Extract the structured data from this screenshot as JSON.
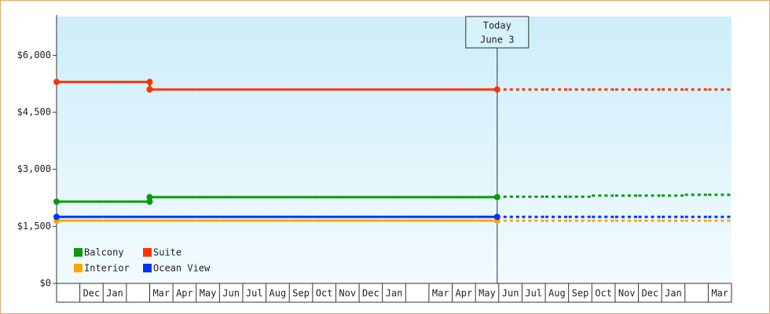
{
  "chart_data": {
    "type": "line",
    "categories": [
      null,
      "Dec",
      "Jan",
      null,
      "Mar",
      "Apr",
      "May",
      "Jun",
      "Jul",
      "Aug",
      "Sep",
      "Oct",
      "Nov",
      "Dec",
      "Jan",
      null,
      "Mar",
      "Apr",
      "May",
      "Jun",
      "Jul",
      "Aug",
      "Sep",
      "Oct",
      "Nov",
      "Dec",
      "Jan",
      null,
      "Mar"
    ],
    "ylim": [
      0,
      7000
    ],
    "yticks": [
      {
        "value": 0,
        "label": "$0"
      },
      {
        "value": 1500,
        "label": "$1,500"
      },
      {
        "value": 3000,
        "label": "$3,000"
      },
      {
        "value": 4500,
        "label": "$4,500"
      },
      {
        "value": 6000,
        "label": "$6,000"
      }
    ],
    "today": {
      "label": "Today",
      "date": "June 3",
      "category": 19
    },
    "series": [
      {
        "name": "Balcony",
        "color": "#0a9a0a",
        "values": [
          2150,
          2150,
          2150,
          2150,
          2270,
          2270,
          2270,
          2270,
          2270,
          2270,
          2270,
          2270,
          2270,
          2270,
          2270,
          2270,
          2270,
          2270,
          2270,
          2270,
          null,
          null,
          null,
          null,
          null,
          null,
          null,
          null,
          null
        ],
        "forecast": [
          null,
          null,
          null,
          null,
          null,
          null,
          null,
          null,
          null,
          null,
          null,
          null,
          null,
          null,
          null,
          null,
          null,
          null,
          null,
          2280,
          2280,
          2280,
          2280,
          2310,
          2310,
          2310,
          2310,
          2330,
          2330
        ]
      },
      {
        "name": "Suite",
        "color": "#ff3300",
        "values": [
          5300,
          5300,
          5300,
          5300,
          5100,
          5100,
          5100,
          5100,
          5100,
          5100,
          5100,
          5100,
          5100,
          5100,
          5100,
          5100,
          5100,
          5100,
          5100,
          5100,
          null,
          null,
          null,
          null,
          null,
          null,
          null,
          null,
          null
        ],
        "forecast": [
          null,
          null,
          null,
          null,
          null,
          null,
          null,
          null,
          null,
          null,
          null,
          null,
          null,
          null,
          null,
          null,
          null,
          null,
          null,
          5100,
          5100,
          5100,
          5100,
          5100,
          5100,
          5100,
          5100,
          5100,
          5100
        ]
      },
      {
        "name": "Interior",
        "color": "#ffa500",
        "values": [
          1650,
          1650,
          1650,
          1650,
          1650,
          1650,
          1650,
          1650,
          1650,
          1650,
          1650,
          1650,
          1650,
          1650,
          1650,
          1650,
          1650,
          1650,
          1650,
          1650,
          null,
          null,
          null,
          null,
          null,
          null,
          null,
          null,
          null
        ],
        "forecast": [
          null,
          null,
          null,
          null,
          null,
          null,
          null,
          null,
          null,
          null,
          null,
          null,
          null,
          null,
          null,
          null,
          null,
          null,
          null,
          1650,
          1650,
          1650,
          1650,
          1650,
          1650,
          1650,
          1650,
          1650,
          1650
        ]
      },
      {
        "name": "Ocean View",
        "color": "#0033ff",
        "values": [
          1750,
          1750,
          1750,
          1750,
          1750,
          1750,
          1750,
          1750,
          1750,
          1750,
          1750,
          1750,
          1750,
          1750,
          1750,
          1750,
          1750,
          1750,
          1750,
          1750,
          null,
          null,
          null,
          null,
          null,
          null,
          null,
          null,
          null
        ],
        "forecast": [
          null,
          null,
          null,
          null,
          null,
          null,
          null,
          null,
          null,
          null,
          null,
          null,
          null,
          null,
          null,
          null,
          null,
          null,
          null,
          1750,
          1750,
          1750,
          1750,
          1750,
          1750,
          1750,
          1750,
          1750,
          1750
        ]
      }
    ]
  }
}
